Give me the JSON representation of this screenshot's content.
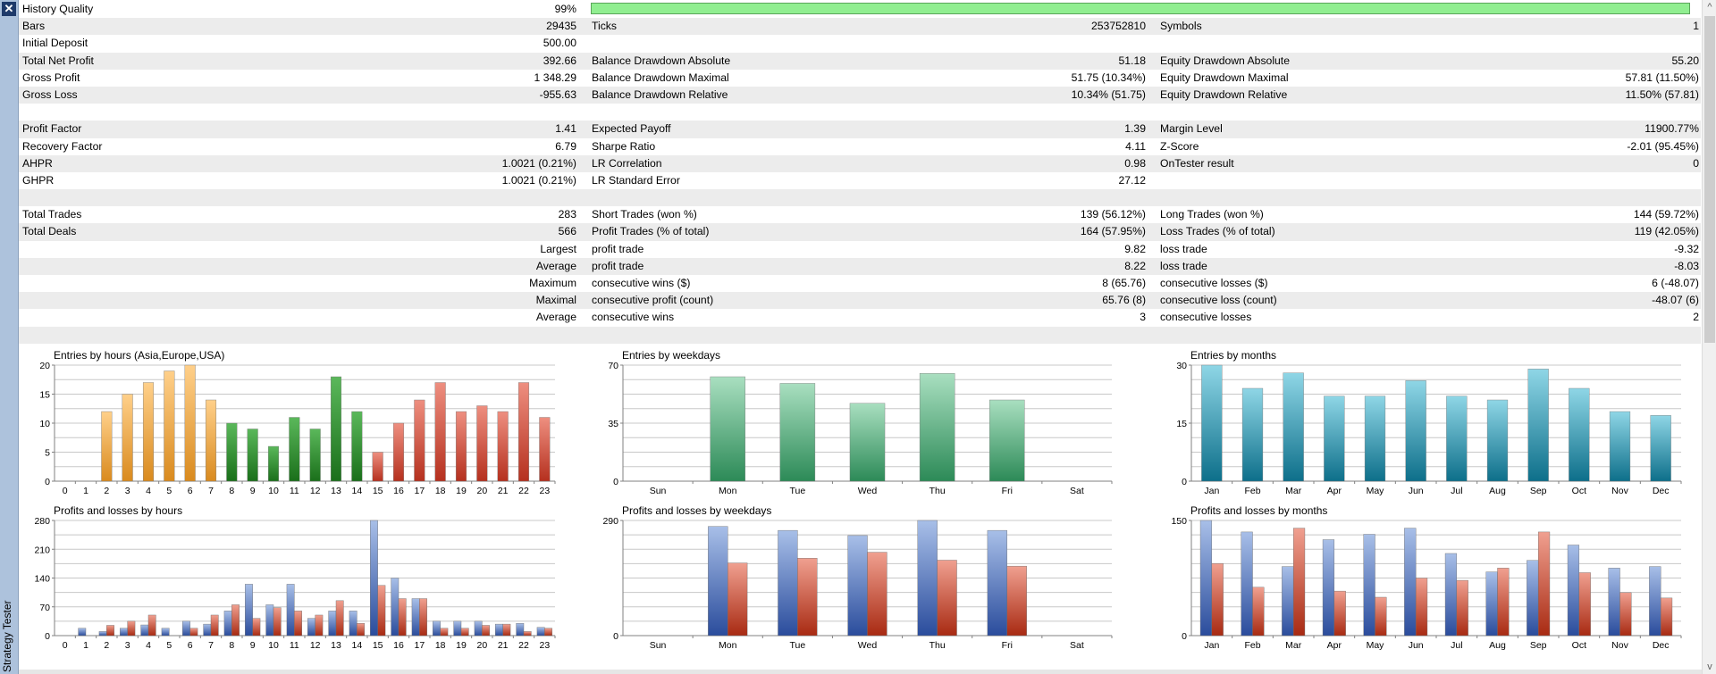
{
  "sidebar": {
    "close_label": "✕",
    "tab_label": "Strategy Tester"
  },
  "colors": {
    "quality_bar": "#90ee90",
    "row_shade": "#ececec",
    "sidebar": "#adc2dc"
  },
  "stats": {
    "history_quality": {
      "label": "History Quality",
      "value": "99%",
      "fill": 0.99
    },
    "rows": [
      {
        "shade": true,
        "c1l": "Bars",
        "c1v": "29435",
        "c2l": "Ticks",
        "c2v": "253752810",
        "c3l": "Symbols",
        "c3v": "1"
      },
      {
        "shade": false,
        "c1l": "Initial Deposit",
        "c1v": "500.00",
        "c2l": "",
        "c2v": "",
        "c3l": "",
        "c3v": ""
      },
      {
        "shade": true,
        "c1l": "Total Net Profit",
        "c1v": "392.66",
        "c2l": "Balance Drawdown Absolute",
        "c2v": "51.18",
        "c3l": "Equity Drawdown Absolute",
        "c3v": "55.20"
      },
      {
        "shade": false,
        "c1l": "Gross Profit",
        "c1v": "1 348.29",
        "c2l": "Balance Drawdown Maximal",
        "c2v": "51.75 (10.34%)",
        "c3l": "Equity Drawdown Maximal",
        "c3v": "57.81 (11.50%)"
      },
      {
        "shade": true,
        "c1l": "Gross Loss",
        "c1v": "-955.63",
        "c2l": "Balance Drawdown Relative",
        "c2v": "10.34% (51.75)",
        "c3l": "Equity Drawdown Relative",
        "c3v": "11.50% (57.81)"
      },
      {
        "shade": false,
        "c1l": "",
        "c1v": "",
        "c2l": "",
        "c2v": "",
        "c3l": "",
        "c3v": ""
      },
      {
        "shade": true,
        "c1l": "Profit Factor",
        "c1v": "1.41",
        "c2l": "Expected Payoff",
        "c2v": "1.39",
        "c3l": "Margin Level",
        "c3v": "11900.77%"
      },
      {
        "shade": false,
        "c1l": "Recovery Factor",
        "c1v": "6.79",
        "c2l": "Sharpe Ratio",
        "c2v": "4.11",
        "c3l": "Z-Score",
        "c3v": "-2.01 (95.45%)"
      },
      {
        "shade": true,
        "c1l": "AHPR",
        "c1v": "1.0021 (0.21%)",
        "c2l": "LR Correlation",
        "c2v": "0.98",
        "c3l": "OnTester result",
        "c3v": "0"
      },
      {
        "shade": false,
        "c1l": "GHPR",
        "c1v": "1.0021 (0.21%)",
        "c2l": "LR Standard Error",
        "c2v": "27.12",
        "c3l": "",
        "c3v": ""
      },
      {
        "shade": true,
        "c1l": "",
        "c1v": "",
        "c2l": "",
        "c2v": "",
        "c3l": "",
        "c3v": ""
      },
      {
        "shade": false,
        "c1l": "Total Trades",
        "c1v": "283",
        "c2l": "Short Trades (won %)",
        "c2v": "139 (56.12%)",
        "c3l": "Long Trades (won %)",
        "c3v": "144 (59.72%)"
      },
      {
        "shade": true,
        "c1l": "Total Deals",
        "c1v": "566",
        "c2l": "Profit Trades (% of total)",
        "c2v": "164 (57.95%)",
        "c3l": "Loss Trades (% of total)",
        "c3v": "119 (42.05%)"
      },
      {
        "shade": false,
        "c1r": "Largest",
        "c2l": "profit trade",
        "c2v": "9.82",
        "c3l": "loss trade",
        "c3v": "-9.32"
      },
      {
        "shade": true,
        "c1r": "Average",
        "c2l": "profit trade",
        "c2v": "8.22",
        "c3l": "loss trade",
        "c3v": "-8.03"
      },
      {
        "shade": false,
        "c1r": "Maximum",
        "c2l": "consecutive wins ($)",
        "c2v": "8 (65.76)",
        "c3l": "consecutive losses ($)",
        "c3v": "6 (-48.07)"
      },
      {
        "shade": true,
        "c1r": "Maximal",
        "c2l": "consecutive profit (count)",
        "c2v": "65.76 (8)",
        "c3l": "consecutive loss (count)",
        "c3v": "-48.07 (6)"
      },
      {
        "shade": false,
        "c1r": "Average",
        "c2l": "consecutive wins",
        "c2v": "3",
        "c3l": "consecutive losses",
        "c3v": "2"
      },
      {
        "shade": true,
        "c1l": "",
        "c1v": "",
        "c2l": "",
        "c2v": "",
        "c3l": "",
        "c3v": ""
      }
    ]
  },
  "chart_data": [
    {
      "type": "bar",
      "title": "Entries by hours (Asia,Europe,USA)",
      "categories": [
        "0",
        "1",
        "2",
        "3",
        "4",
        "5",
        "6",
        "7",
        "8",
        "9",
        "10",
        "11",
        "12",
        "13",
        "14",
        "15",
        "16",
        "17",
        "18",
        "19",
        "20",
        "21",
        "22",
        "23"
      ],
      "values": [
        0,
        0,
        12,
        15,
        17,
        19,
        20,
        14,
        10,
        9,
        6,
        11,
        9,
        18,
        12,
        5,
        10,
        14,
        17,
        12,
        13,
        12,
        17,
        11
      ],
      "ylim": [
        0,
        20
      ],
      "yticks": [
        0,
        5,
        10,
        15,
        20
      ]
    },
    {
      "type": "bar",
      "title": "Entries by weekdays",
      "categories": [
        "Sun",
        "Mon",
        "Tue",
        "Wed",
        "Thu",
        "Fri",
        "Sat"
      ],
      "values": [
        0,
        63,
        59,
        47,
        65,
        49,
        0
      ],
      "ylim": [
        0,
        70
      ],
      "yticks": [
        0,
        35,
        70
      ]
    },
    {
      "type": "bar",
      "title": "Entries by months",
      "categories": [
        "Jan",
        "Feb",
        "Mar",
        "Apr",
        "May",
        "Jun",
        "Jul",
        "Aug",
        "Sep",
        "Oct",
        "Nov",
        "Dec"
      ],
      "values": [
        30,
        24,
        28,
        22,
        22,
        26,
        22,
        21,
        29,
        24,
        18,
        17
      ],
      "ylim": [
        0,
        30
      ],
      "yticks": [
        0,
        15,
        30
      ]
    },
    {
      "type": "bar",
      "title": "Profits and losses by hours",
      "categories": [
        "0",
        "1",
        "2",
        "3",
        "4",
        "5",
        "6",
        "7",
        "8",
        "9",
        "10",
        "11",
        "12",
        "13",
        "14",
        "15",
        "16",
        "17",
        "18",
        "19",
        "20",
        "21",
        "22",
        "23"
      ],
      "series": [
        {
          "values": [
            0,
            18,
            10,
            18,
            26,
            18,
            35,
            28,
            60,
            125,
            75,
            125,
            42,
            60,
            60,
            280,
            140,
            90,
            35,
            35,
            35,
            28,
            30,
            20
          ]
        },
        {
          "values": [
            0,
            0,
            25,
            35,
            50,
            0,
            18,
            50,
            75,
            42,
            68,
            60,
            50,
            85,
            30,
            122,
            90,
            90,
            18,
            18,
            25,
            28,
            10,
            18
          ]
        }
      ],
      "ylim": [
        0,
        280
      ],
      "yticks": [
        0,
        70,
        140,
        210,
        280
      ]
    },
    {
      "type": "bar",
      "title": "Profits and losses by weekdays",
      "categories": [
        "Sun",
        "Mon",
        "Tue",
        "Wed",
        "Thu",
        "Fri",
        "Sat"
      ],
      "series": [
        {
          "values": [
            0,
            275,
            265,
            252,
            290,
            265,
            0
          ]
        },
        {
          "values": [
            0,
            183,
            195,
            210,
            190,
            175,
            0
          ]
        }
      ],
      "ylim": [
        0,
        290
      ],
      "yticks": [
        0,
        290
      ]
    },
    {
      "type": "bar",
      "title": "Profits and losses by months",
      "categories": [
        "Jan",
        "Feb",
        "Mar",
        "Apr",
        "May",
        "Jun",
        "Jul",
        "Aug",
        "Sep",
        "Oct",
        "Nov",
        "Dec"
      ],
      "series": [
        {
          "values": [
            150,
            135,
            90,
            125,
            132,
            140,
            107,
            83,
            98,
            118,
            88,
            90
          ]
        },
        {
          "values": [
            94,
            63,
            140,
            58,
            50,
            75,
            72,
            88,
            135,
            82,
            56,
            49
          ]
        }
      ],
      "ylim": [
        0,
        150
      ],
      "yticks": [
        0,
        150
      ]
    }
  ]
}
